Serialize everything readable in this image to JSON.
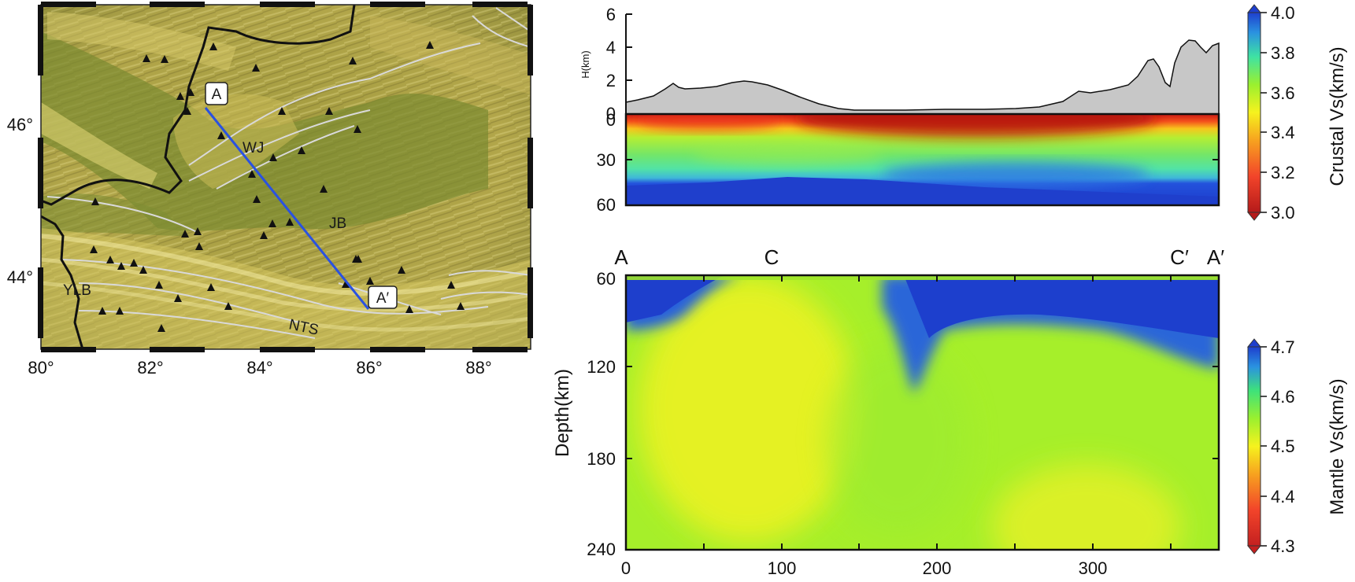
{
  "map": {
    "lon_ticks": [
      "80°",
      "82°",
      "84°",
      "86°",
      "88°"
    ],
    "lat_ticks": [
      "46°",
      "44°"
    ],
    "regions": [
      "WJ",
      "JB",
      "YLB",
      "NTS"
    ],
    "profile_start_label": "A",
    "profile_end_label": "A′",
    "profile_line_color": "#2a52e0"
  },
  "topography": {
    "ylabel": "H(km)",
    "yticks": [
      "6",
      "4",
      "2",
      "0"
    ],
    "fill_color": "#c7c7c7"
  },
  "crust_section": {
    "yticks": [
      "0",
      "30",
      "60"
    ]
  },
  "mantle_section": {
    "ylabel": "Depth(km)",
    "yticks": [
      "60",
      "120",
      "180",
      "240"
    ],
    "xticks": [
      "0",
      "100",
      "200",
      "300"
    ],
    "profile_markers": [
      "A",
      "C",
      "C′",
      "A′"
    ]
  },
  "colorbars": {
    "crust": {
      "title": "Crustal Vs(km/s)",
      "ticks": [
        "4.0",
        "3.8",
        "3.6",
        "3.4",
        "3.2",
        "3.0"
      ]
    },
    "mantle": {
      "title": "Mantle Vs(km/s)",
      "ticks": [
        "4.7",
        "4.6",
        "4.5",
        "4.4",
        "4.3"
      ]
    }
  }
}
